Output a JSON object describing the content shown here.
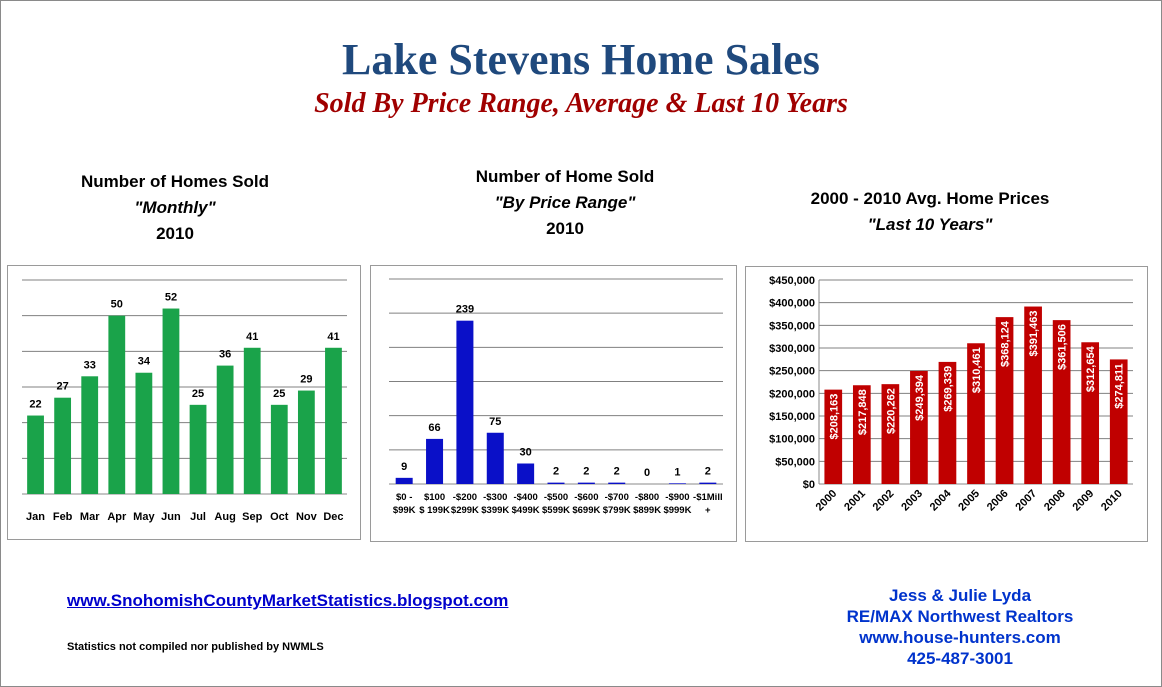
{
  "header": {
    "title": "Lake Stevens Home Sales",
    "subtitle": "Sold By Price Range, Average & Last 10 Years"
  },
  "chart_data": [
    {
      "type": "bar",
      "title_lines": [
        "Number of Homes Sold",
        "\"Monthly\"",
        "2010"
      ],
      "categories": [
        "Jan",
        "Feb",
        "Mar",
        "Apr",
        "May",
        "Jun",
        "Jul",
        "Aug",
        "Sep",
        "Oct",
        "Nov",
        "Dec"
      ],
      "values": [
        22,
        27,
        33,
        50,
        34,
        52,
        25,
        36,
        41,
        25,
        29,
        41
      ],
      "ylim": [
        0,
        60
      ],
      "grid": true,
      "color": "#1aa34a"
    },
    {
      "type": "bar",
      "title_lines": [
        "Number of Home Sold",
        "\"By Price Range\"",
        "2010"
      ],
      "categories": [
        [
          "$0 -",
          "$99K"
        ],
        [
          "$100",
          "$ 199K"
        ],
        [
          "-$200",
          "$299K"
        ],
        [
          "-$300",
          "$399K"
        ],
        [
          "-$400",
          "$499K"
        ],
        [
          "-$500",
          "$599K"
        ],
        [
          "-$600",
          "$699K"
        ],
        [
          "-$700",
          "$799K"
        ],
        [
          "-$800",
          "$899K"
        ],
        [
          "-$900",
          "$999K"
        ],
        [
          "-$1Mill",
          "+"
        ]
      ],
      "values": [
        9,
        66,
        239,
        75,
        30,
        2,
        2,
        2,
        0,
        1,
        2
      ],
      "ylim": [
        0,
        300
      ],
      "grid": true,
      "color": "#0a10c8"
    },
    {
      "type": "bar",
      "title_lines": [
        "2000 - 2010 Avg. Home Prices",
        "\"Last 10 Years\""
      ],
      "categories": [
        "2000",
        "2001",
        "2002",
        "2003",
        "2004",
        "2005",
        "2006",
        "2007",
        "2008",
        "2009",
        "2010"
      ],
      "values": [
        208163,
        217848,
        220262,
        249394,
        269339,
        310461,
        368124,
        391463,
        361506,
        312654,
        274811
      ],
      "value_labels": [
        "$208,163",
        "$217,848",
        "$220,262",
        "$249,394",
        "$269,339",
        "$310,461",
        "$368,124",
        "$391,463",
        "$361,506",
        "$312,654",
        "$274,811"
      ],
      "ylim": [
        0,
        450000
      ],
      "yticks": [
        "$0",
        "$50,000",
        "$100,000",
        "$150,000",
        "$200,000",
        "$250,000",
        "$300,000",
        "$350,000",
        "$400,000",
        "$450,000"
      ],
      "grid": true,
      "color": "#c00000"
    }
  ],
  "footer": {
    "link": "www.SnohomishCountyMarketStatistics.blogspot.com",
    "note": "Statistics not compiled nor published by NWMLS",
    "contact": [
      "Jess & Julie Lyda",
      "RE/MAX Northwest Realtors",
      "www.house-hunters.com",
      "425-487-3001"
    ]
  }
}
